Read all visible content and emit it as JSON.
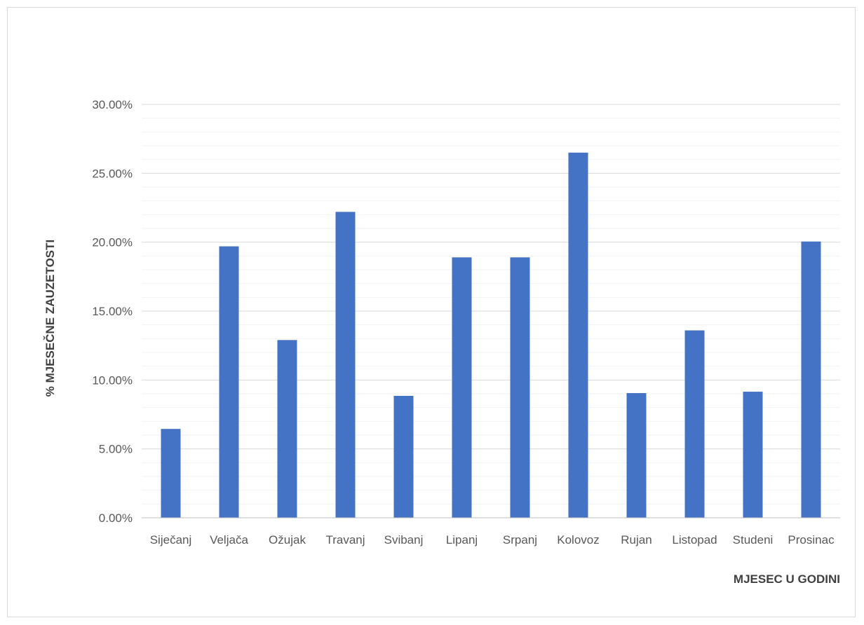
{
  "chart_data": {
    "type": "bar",
    "title": "",
    "xlabel": "MJESEC U GODINI",
    "ylabel": "% MJESEČNE ZAUZETOSTI",
    "categories": [
      "Siječanj",
      "Veljača",
      "Ožujak",
      "Travanj",
      "Svibanj",
      "Lipanj",
      "Srpanj",
      "Kolovoz",
      "Rujan",
      "Listopad",
      "Studeni",
      "Prosinac"
    ],
    "values": [
      6.45,
      19.7,
      12.9,
      22.2,
      8.85,
      18.9,
      18.9,
      26.5,
      9.05,
      13.6,
      9.15,
      20.05
    ],
    "ylim": [
      0,
      30
    ],
    "yticks": [
      0,
      5,
      10,
      15,
      20,
      25,
      30
    ],
    "ytick_labels": [
      "0.00%",
      "5.00%",
      "10.00%",
      "15.00%",
      "20.00%",
      "25.00%",
      "30.00%"
    ],
    "minor_step": 1,
    "grid": true,
    "legend": "none",
    "colors": {
      "bar": "#4472c4",
      "major_grid": "#d9d9d9",
      "minor_grid": "#f2f2f2",
      "axis": "#bfbfbf"
    }
  }
}
